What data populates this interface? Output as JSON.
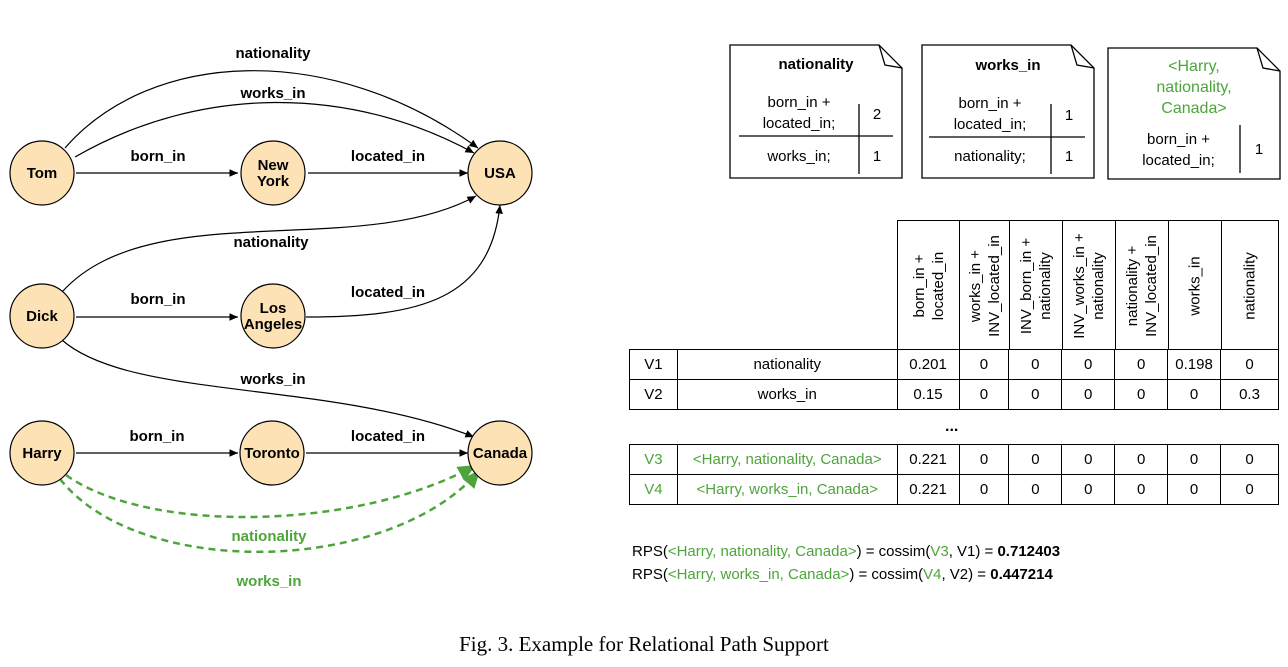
{
  "graph": {
    "nodes": {
      "tom": "Tom",
      "new_york": [
        "New",
        "York"
      ],
      "usa": "USA",
      "dick": "Dick",
      "los_angeles": [
        "Los",
        "Angeles"
      ],
      "harry": "Harry",
      "toronto": "Toronto",
      "canada": "Canada"
    },
    "edges": {
      "tom_usa_nationality": "nationality",
      "tom_usa_works_in": "works_in",
      "tom_ny_born_in": "born_in",
      "ny_usa_located_in": "located_in",
      "dick_usa_nationality": "nationality",
      "dick_la_born_in": "born_in",
      "la_usa_located_in": "located_in",
      "dick_canada_works_in": "works_in",
      "harry_toronto_born_in": "born_in",
      "toronto_canada_located_in": "located_in",
      "harry_canada_nationality_pred": "nationality",
      "harry_canada_works_in_pred": "works_in"
    },
    "colors": {
      "node_fill": "#fde2b6",
      "predicted": "#4ea43b"
    }
  },
  "path_docs": [
    {
      "title": "nationality",
      "rows": [
        {
          "path": "born_in +\nlocated_in;",
          "count": "2"
        },
        {
          "path": "works_in;",
          "count": "1"
        }
      ]
    },
    {
      "title": "works_in",
      "rows": [
        {
          "path": "born_in +\nlocated_in;",
          "count": "1"
        },
        {
          "path": "nationality;",
          "count": "1"
        }
      ]
    },
    {
      "title": "<Harry,\nnationality,\nCanada>",
      "rows": [
        {
          "path": "born_in +\nlocated_in;",
          "count": "1"
        }
      ]
    }
  ],
  "feature_table": {
    "columns": [
      "born_in +\nlocated_in",
      "works_in +\nINV_located_in",
      "INV_born_in +\nnationality",
      "INV_works_in +\nnationality",
      "nationality +\nINV_located_in",
      "works_in",
      "nationality"
    ],
    "rows_top": [
      {
        "id": "V1",
        "relation": "nationality",
        "values": [
          "0.201",
          "0",
          "0",
          "0",
          "0",
          "0.198",
          "0"
        ]
      },
      {
        "id": "V2",
        "relation": "works_in",
        "values": [
          "0.15",
          "0",
          "0",
          "0",
          "0",
          "0",
          "0.3"
        ]
      }
    ],
    "ellipsis": "...",
    "rows_bottom": [
      {
        "id": "V3",
        "relation": "<Harry, nationality, Canada>",
        "values": [
          "0.221",
          "0",
          "0",
          "0",
          "0",
          "0",
          "0"
        ]
      },
      {
        "id": "V4",
        "relation": "<Harry, works_in, Canada>",
        "values": [
          "0.221",
          "0",
          "0",
          "0",
          "0",
          "0",
          "0"
        ]
      }
    ]
  },
  "rps": [
    {
      "prefix": "RPS(",
      "triple": "<Harry, nationality, Canada>",
      "mid": ") = cossim(",
      "v_a": "V3",
      "sep": ", V1) = ",
      "score": "0.712403"
    },
    {
      "prefix": "RPS(",
      "triple": "<Harry, works_in, Canada>",
      "mid": ") = cossim(",
      "v_a": "V4",
      "sep": ", V2) = ",
      "score": "0.447214"
    }
  ],
  "caption": "Fig. 3.  Example for Relational Path Support"
}
